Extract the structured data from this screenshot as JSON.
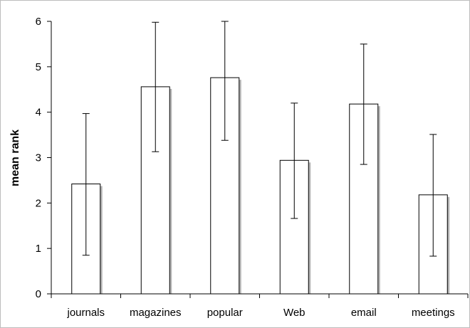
{
  "chart_data": {
    "type": "bar",
    "title": "",
    "xlabel": "",
    "ylabel": "mean rank",
    "ylim": [
      0,
      6
    ],
    "yticks": [
      0,
      1,
      2,
      3,
      4,
      5,
      6
    ],
    "grid": false,
    "legend": "none",
    "categories": [
      "journals",
      "magazines",
      "popular",
      "Web",
      "email",
      "meetings"
    ],
    "values": [
      2.42,
      4.56,
      4.76,
      2.94,
      4.18,
      2.18
    ],
    "error_low": [
      0.85,
      3.13,
      3.38,
      1.66,
      2.85,
      0.83
    ],
    "error_high": [
      3.97,
      5.98,
      6.0,
      4.2,
      5.5,
      3.51
    ],
    "colors": {
      "bar_fill": "#ffffff",
      "bar_stroke": "#000000",
      "bar_shadow": "#b4b4b4",
      "axis": "#000000"
    }
  }
}
